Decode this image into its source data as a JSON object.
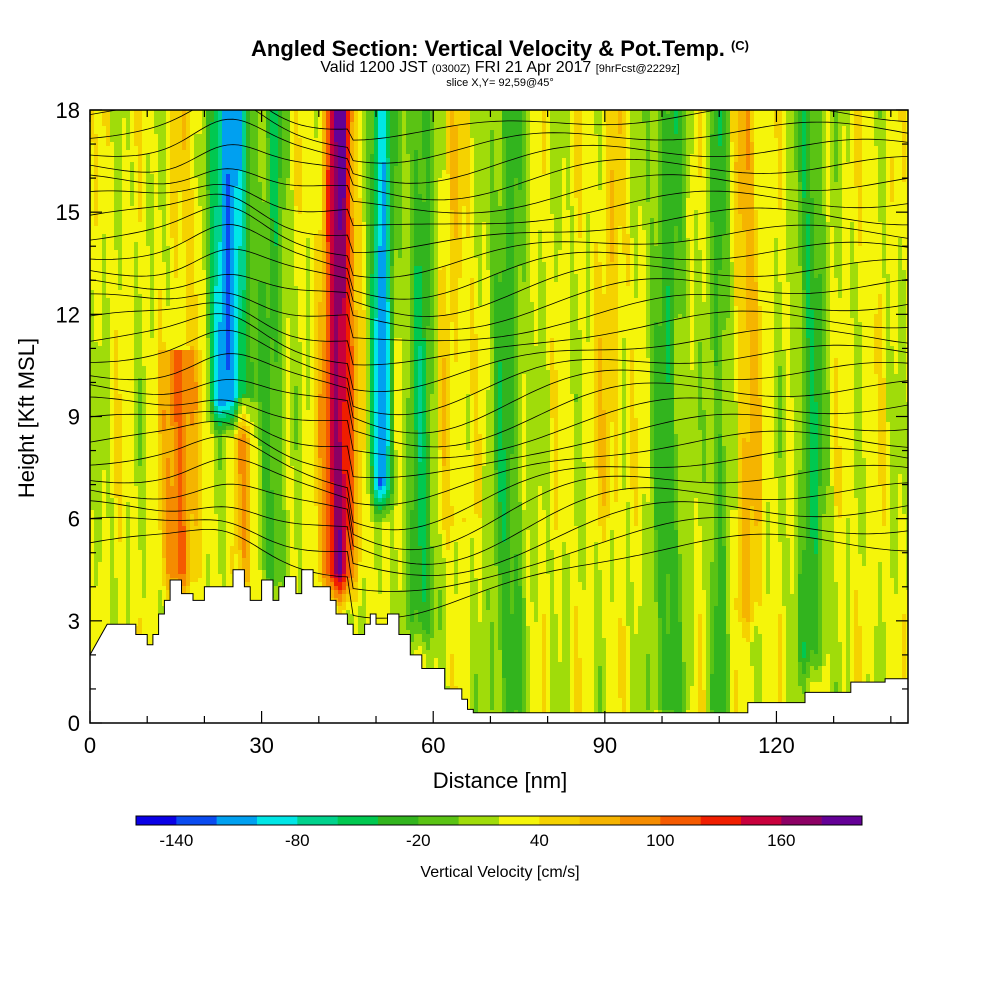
{
  "header": {
    "title": "Angled Section: Vertical Velocity & Pot.Temp.",
    "title_unit": "(C)",
    "subtitle_a": "Valid 1200 JST",
    "subtitle_b": "(0300Z)",
    "subtitle_c": "FRI 21 Apr 2017",
    "subtitle_d": "[9hrFcst@2229z]",
    "slice": "slice X,Y= 92,59@45°"
  },
  "chart_data": {
    "type": "heatmap",
    "title": "Angled Section: Vertical Velocity & Pot.Temp. (C)",
    "xlabel": "Distance [nm]",
    "ylabel": "Height [Kft MSL]",
    "xlim": [
      0,
      143
    ],
    "ylim": [
      0,
      18
    ],
    "x_ticks": [
      0,
      30,
      60,
      90,
      120
    ],
    "y_ticks": [
      0,
      3,
      6,
      9,
      12,
      15,
      18
    ],
    "colorbar": {
      "label": "Vertical Velocity [cm/s]",
      "min": -160,
      "max": 200,
      "step": 20,
      "tick_values": [
        -140,
        -80,
        -20,
        40,
        100,
        160
      ],
      "colors": [
        "#0a00e6",
        "#0a4bf0",
        "#00a0f0",
        "#00e6e6",
        "#00d28c",
        "#00c850",
        "#32b41e",
        "#5ac314",
        "#a0dc0a",
        "#f5f50a",
        "#f5d200",
        "#f5b400",
        "#f58c00",
        "#f55a00",
        "#f01e00",
        "#c8003c",
        "#8c0064",
        "#640096"
      ]
    },
    "terrain_profile": {
      "x": [
        0,
        2,
        3,
        8,
        8,
        10,
        10,
        11,
        11,
        12,
        12,
        13,
        13,
        14,
        14,
        16,
        16,
        18,
        18,
        20,
        20,
        25,
        25,
        27,
        27,
        28,
        28,
        30,
        30,
        32,
        32,
        33,
        33,
        34,
        34,
        36,
        36,
        37,
        37,
        39,
        39,
        42,
        42,
        43,
        43,
        45,
        45,
        46,
        46,
        48,
        48,
        49,
        49,
        50,
        50,
        52,
        52,
        54,
        54,
        56,
        56,
        58,
        58,
        59,
        59,
        60,
        60,
        62,
        62,
        65,
        65,
        66,
        66,
        67,
        67,
        68,
        68,
        115,
        115,
        125,
        125,
        129,
        129,
        133,
        133,
        136,
        136,
        139,
        139,
        143
      ],
      "height": [
        2.0,
        2.6,
        2.9,
        2.9,
        2.6,
        2.6,
        2.3,
        2.3,
        2.6,
        2.6,
        3.2,
        3.2,
        3.6,
        3.6,
        4.2,
        4.2,
        3.8,
        3.8,
        3.6,
        3.6,
        4.0,
        4.0,
        4.5,
        4.5,
        4.0,
        4.0,
        3.6,
        3.6,
        4.2,
        4.2,
        3.6,
        3.6,
        4.0,
        4.0,
        4.3,
        4.3,
        3.8,
        3.8,
        4.5,
        4.5,
        4.0,
        4.0,
        3.6,
        3.6,
        3.2,
        3.2,
        2.9,
        2.9,
        2.6,
        2.6,
        2.9,
        2.9,
        3.2,
        3.2,
        2.9,
        2.9,
        3.2,
        3.2,
        2.6,
        2.6,
        2.0,
        2.0,
        1.6,
        1.6,
        1.6,
        1.6,
        1.6,
        1.6,
        1.0,
        1.0,
        0.7,
        0.7,
        0.4,
        0.4,
        0.3,
        0.3,
        0.3,
        0.3,
        0.6,
        0.6,
        0.9,
        0.9,
        0.9,
        0.9,
        1.2,
        1.2,
        1.2,
        1.2,
        1.3,
        1.3
      ]
    },
    "velocity_features": [
      {
        "kind": "updraft",
        "x": 43.5,
        "half_width": 3.0,
        "bottom": 4.5,
        "top": 18,
        "peak": 180
      },
      {
        "kind": "downdraft",
        "x": 24,
        "half_width": 4.5,
        "bottom": 9.5,
        "top": 18,
        "peak": -120
      },
      {
        "kind": "downdraft",
        "x": 51,
        "half_width": 2.2,
        "bottom": 7.0,
        "top": 18,
        "peak": -110
      },
      {
        "kind": "updraft",
        "x": 15.5,
        "half_width": 3.0,
        "bottom": 4.5,
        "top": 10,
        "peak": 110
      },
      {
        "kind": "updraft",
        "x": 19,
        "half_width": 4.0,
        "bottom": 9.5,
        "top": 18,
        "peak": 60
      },
      {
        "kind": "updraft",
        "x": 27,
        "half_width": 2.0,
        "bottom": 4.5,
        "top": 8.5,
        "peak": 70
      },
      {
        "kind": "updraft",
        "x": 63,
        "half_width": 3.5,
        "bottom": 6.0,
        "top": 18,
        "peak": 50
      },
      {
        "kind": "updraft",
        "x": 91,
        "half_width": 3.0,
        "bottom": 6.5,
        "top": 18,
        "peak": 50
      },
      {
        "kind": "updraft",
        "x": 115,
        "half_width": 2.5,
        "bottom": 3.5,
        "top": 18,
        "peak": 70
      },
      {
        "kind": "downdraft",
        "x": 32,
        "half_width": 2.5,
        "bottom": 4.5,
        "top": 18,
        "peak": -30
      },
      {
        "kind": "downdraft",
        "x": 58,
        "half_width": 3.0,
        "bottom": 3.0,
        "top": 18,
        "peak": -40
      },
      {
        "kind": "downdraft",
        "x": 73,
        "half_width": 3.5,
        "bottom": 0.5,
        "top": 18,
        "peak": -30
      },
      {
        "kind": "downdraft",
        "x": 101,
        "half_width": 3.5,
        "bottom": 0.5,
        "top": 18,
        "peak": -30
      },
      {
        "kind": "downdraft",
        "x": 110,
        "half_width": 2.0,
        "bottom": 0.5,
        "top": 18,
        "peak": -30
      },
      {
        "kind": "downdraft",
        "x": 126,
        "half_width": 3.0,
        "bottom": 2.0,
        "top": 18,
        "peak": -35
      },
      {
        "kind": "updraft",
        "x": 136,
        "half_width": 2.5,
        "bottom": 3.0,
        "top": 18,
        "peak": 30
      }
    ],
    "theta_contours": {
      "count": 26,
      "low_base_height": 5.3,
      "top_height": 17.9,
      "bottom_wave_dip_x": 55,
      "bottom_wave_dip_amount": 1.6,
      "wave_bump_x": 24,
      "wave_bump_amount": 0.9
    }
  }
}
